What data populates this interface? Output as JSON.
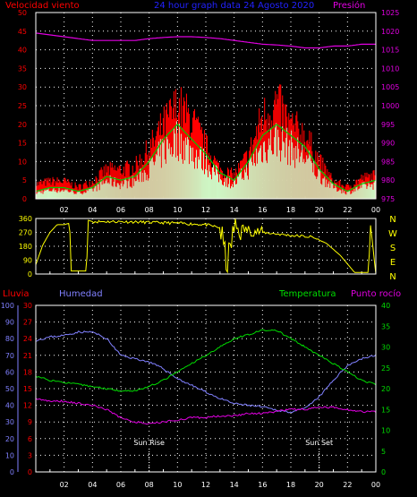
{
  "colors": {
    "wind": "#ff0000",
    "gust": "#ff0000",
    "wind_avg": "#00cc00",
    "wind_fill": "#ccffcc",
    "pressure": "#e000e0",
    "direction": "#ffff00",
    "rain": "#ff0000",
    "humidity": "#8080ff",
    "temperature": "#00dd00",
    "dewpoint": "#e000e0",
    "grid": "#ffffff",
    "title": "#2222ff"
  },
  "chart_data": [
    {
      "type": "area",
      "id": "wind",
      "title": "24 hour graph data  24 Agosto 2020",
      "left_label": "Velocidad viento",
      "right_label": "Presión",
      "x_ticks": [
        "02",
        "04",
        "06",
        "08",
        "10",
        "12",
        "14",
        "16",
        "18",
        "20",
        "22",
        "00"
      ],
      "ylim_left": [
        0,
        50
      ],
      "yticks_left": [
        "0",
        "5",
        "10",
        "15",
        "20",
        "25",
        "30",
        "35",
        "40",
        "45",
        "50"
      ],
      "ylim_right": [
        975,
        1025
      ],
      "yticks_right": [
        "975",
        "980",
        "985",
        "990",
        "995",
        "1000",
        "1005",
        "1010",
        "1015",
        "1020",
        "1025"
      ],
      "x_hours": [
        0,
        1,
        2,
        3,
        4,
        5,
        6,
        7,
        8,
        9,
        10,
        11,
        12,
        13,
        14,
        15,
        16,
        17,
        18,
        19,
        20,
        21,
        22,
        23,
        24
      ],
      "series": [
        {
          "key": "gust",
          "values": [
            5,
            6,
            6,
            4,
            6,
            10,
            10,
            11,
            17,
            25,
            32,
            27,
            18,
            10,
            8,
            15,
            28,
            33,
            25,
            22,
            13,
            6,
            4,
            7,
            8
          ]
        },
        {
          "key": "avg",
          "values": [
            2,
            3,
            3,
            2,
            3,
            6,
            5,
            6,
            10,
            16,
            20,
            16,
            12,
            7,
            5,
            10,
            17,
            20,
            17,
            14,
            8,
            4,
            2,
            4,
            5
          ]
        },
        {
          "key": "pressure",
          "values": [
            1019.5,
            1019,
            1018.5,
            1018,
            1017.5,
            1017.5,
            1017.5,
            1017.5,
            1018,
            1018.3,
            1018.5,
            1018.5,
            1018.3,
            1018,
            1017.5,
            1017,
            1016.5,
            1016.3,
            1016,
            1015.5,
            1015.5,
            1016,
            1016,
            1016.5,
            1016.5
          ]
        }
      ]
    },
    {
      "type": "line",
      "id": "direction",
      "ylim": [
        0,
        360
      ],
      "yticks_left": [
        "0",
        "90",
        "180",
        "270",
        "360"
      ],
      "yticks_right": [
        "N",
        "E",
        "S",
        "W",
        "N"
      ],
      "x_hours": [
        0,
        0.5,
        1,
        1.5,
        2,
        2.4,
        2.45,
        3.6,
        3.65,
        4,
        6,
        8,
        10,
        12,
        13,
        13.5,
        14,
        16,
        18,
        19.5,
        20.5,
        21.5,
        22.5,
        23.5,
        23.6,
        24
      ],
      "values": [
        60,
        190,
        270,
        320,
        320,
        330,
        20,
        20,
        350,
        340,
        340,
        335,
        330,
        320,
        300,
        60,
        300,
        270,
        250,
        240,
        200,
        120,
        10,
        10,
        340,
        0
      ]
    },
    {
      "type": "line",
      "id": "atmos",
      "rain_label": "Lluvia",
      "humidity_label": "Humedad",
      "temperature_label": "Temperatura",
      "dewpoint_label": "Punto rocío",
      "axis_humidity": [
        "0",
        "10",
        "20",
        "30",
        "40",
        "50",
        "60",
        "70",
        "80",
        "90",
        "100"
      ],
      "axis_rain": [
        "0",
        "3",
        "6",
        "9",
        "12",
        "15",
        "18",
        "21",
        "24",
        "27",
        "30"
      ],
      "axis_temp": [
        "0",
        "5",
        "10",
        "15",
        "20",
        "25",
        "30",
        "35",
        "40"
      ],
      "sunrise_label": "Sun Rise",
      "sunset_label": "Sun Set",
      "sunrise_hour": 8,
      "sunset_hour": 20,
      "x_hours": [
        0,
        1,
        2,
        3,
        4,
        5,
        6,
        7,
        8,
        9,
        10,
        11,
        12,
        13,
        14,
        15,
        16,
        17,
        18,
        19,
        20,
        21,
        22,
        23,
        24
      ],
      "series": [
        {
          "key": "humidity",
          "values": [
            79,
            81,
            82,
            84,
            84,
            80,
            70,
            68,
            66,
            62,
            56,
            52,
            48,
            44,
            41,
            40,
            39,
            37,
            36,
            38,
            45,
            55,
            64,
            68,
            70
          ]
        },
        {
          "key": "temperature",
          "values": [
            23,
            22,
            21.5,
            21,
            20.5,
            20,
            19.5,
            19.5,
            20.5,
            22,
            24,
            26,
            28,
            30,
            32,
            33,
            34,
            34,
            32,
            30,
            28,
            26,
            24,
            22,
            21
          ]
        },
        {
          "key": "dewpoint",
          "values": [
            17.5,
            17,
            17,
            16.5,
            16,
            15,
            13,
            12,
            11.5,
            12,
            12.5,
            13,
            13,
            13.5,
            13.5,
            14,
            14,
            14.5,
            15,
            15,
            15.5,
            15.5,
            15,
            14.5,
            14.5
          ]
        },
        {
          "key": "rain",
          "values": [
            0,
            0,
            0,
            0,
            0,
            0,
            0,
            0,
            0,
            0,
            0,
            0,
            0,
            0,
            0,
            0,
            0,
            0,
            0,
            0,
            0,
            0,
            0,
            0,
            0
          ]
        }
      ]
    }
  ]
}
